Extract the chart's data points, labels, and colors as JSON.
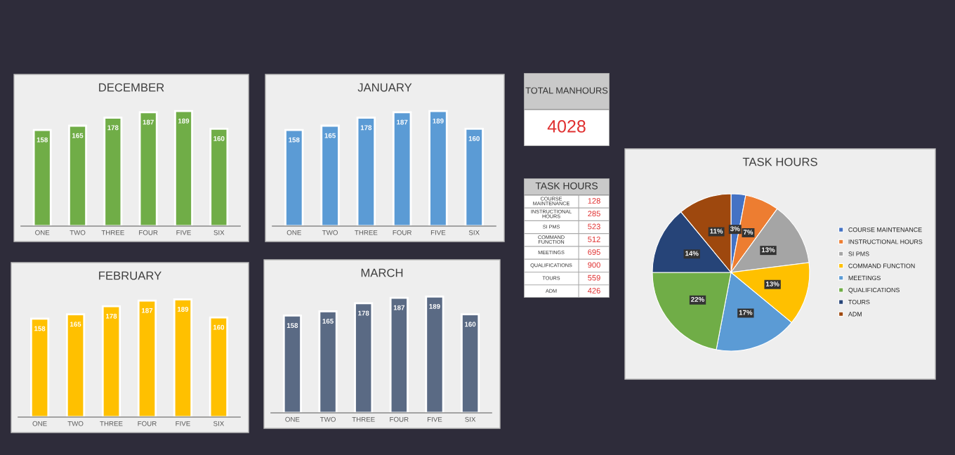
{
  "chart_data": [
    {
      "type": "bar",
      "title": "DECEMBER",
      "categories": [
        "ONE",
        "TWO",
        "THREE",
        "FOUR",
        "FIVE",
        "SIX"
      ],
      "series": [
        {
          "color": "#70ad47",
          "values": [
            158,
            165,
            178,
            187,
            189,
            160
          ]
        }
      ],
      "data_labels": true
    },
    {
      "type": "bar",
      "title": "JANUARY",
      "categories": [
        "ONE",
        "TWO",
        "THREE",
        "FOUR",
        "FIVE",
        "SIX"
      ],
      "series": [
        {
          "color": "#5b9bd5",
          "values": [
            158,
            165,
            178,
            187,
            189,
            160
          ]
        }
      ],
      "data_labels": true
    },
    {
      "type": "other",
      "title": "TOTAL MANHOURS",
      "annotations": [
        "4028"
      ]
    },
    {
      "type": "other",
      "title": "TASK HOURS",
      "categories": [
        "COURSE MAINTENANCE",
        "INSTRUCTIONAL HOURS",
        "SI PMS",
        "COMMAND FUNCTION",
        "MEETINGS",
        "QUALIFICATIONS",
        "TOURS",
        "ADM"
      ],
      "values": [
        128,
        285,
        523,
        512,
        695,
        900,
        559,
        426
      ],
      "value_labels": [
        "128",
        "285",
        "523",
        "512",
        "695",
        "900",
        "559",
        "426"
      ]
    },
    {
      "type": "pie",
      "title": "TASK HOURS",
      "categories": [
        "COURSE MAINTENANCE",
        "INSTRUCTIONAL HOURS",
        "SI PMS",
        "COMMAND FUNCTION",
        "MEETINGS",
        "QUALIFICATIONS",
        "TOURS",
        "ADM"
      ],
      "values": [
        3,
        7,
        13,
        13,
        17,
        22,
        14,
        11
      ],
      "value_labels": [
        "3%",
        "7%",
        "13%",
        "13%",
        "17%",
        "22%",
        "14%",
        "11%"
      ],
      "colors": [
        "#4472c4",
        "#ed7d31",
        "#a5a5a5",
        "#ffc000",
        "#5b9bd5",
        "#70ad47",
        "#264478",
        "#9e480e"
      ],
      "legend": "right"
    },
    {
      "type": "bar",
      "title": "FEBRUARY",
      "categories": [
        "ONE",
        "TWO",
        "THREE",
        "FOUR",
        "FIVE",
        "SIX"
      ],
      "series": [
        {
          "color": "#ffc000",
          "values": [
            158,
            165,
            178,
            187,
            189,
            160
          ]
        }
      ],
      "data_labels": true
    },
    {
      "type": "bar",
      "title": "MARCH",
      "categories": [
        "ONE",
        "TWO",
        "THREE",
        "FOUR",
        "FIVE",
        "SIX"
      ],
      "series": [
        {
          "color": "#5a6a84",
          "values": [
            158,
            165,
            178,
            187,
            189,
            160
          ]
        }
      ],
      "data_labels": true
    }
  ]
}
